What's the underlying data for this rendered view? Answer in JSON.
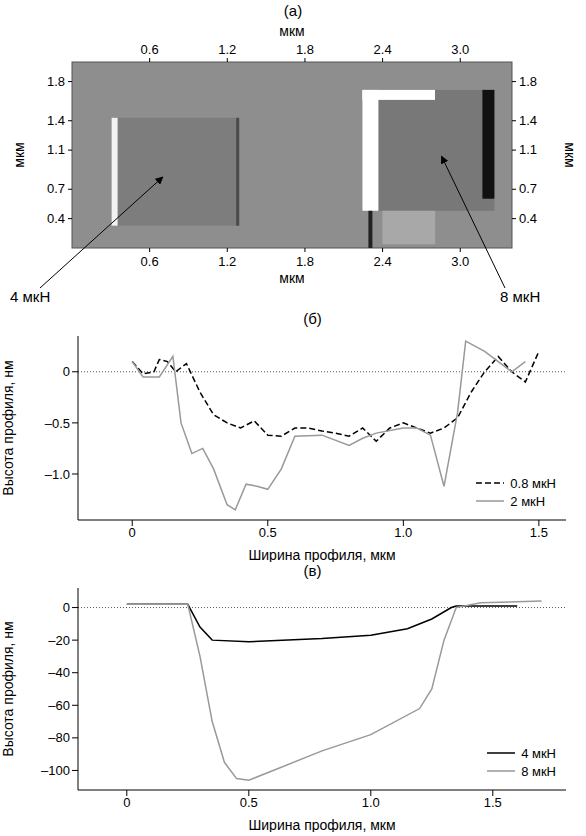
{
  "chart_data": [
    {
      "type": "image",
      "title": "(а)",
      "x_label": "мкм",
      "y_label": "мкм",
      "xlim": [
        0,
        3.4
      ],
      "ylim": [
        0.1,
        2.0
      ],
      "xticks": [
        0.6,
        1.2,
        1.8,
        2.4,
        {
          "value": 3,
          "label": "3.0"
        }
      ],
      "yticks": [
        0.4,
        0.7,
        1.1,
        1.4,
        1.8
      ],
      "annotations": [
        "4 мкН",
        "8 мкН"
      ]
    },
    {
      "type": "line",
      "title": "(б)",
      "x_label": "Ширина профиля, мкм",
      "y_label": "Высота профиля, нм",
      "xlim": [
        -0.2,
        1.6
      ],
      "ylim": [
        -1.45,
        0.35
      ],
      "xticks": [
        0,
        0.5,
        {
          "value": 1,
          "label": "1.0"
        },
        1.5
      ],
      "yticks": [
        {
          "value": -1,
          "label": "–1.0"
        },
        {
          "value": -0.5,
          "label": "–0.5"
        },
        0
      ],
      "reference_y": 0,
      "legend": "lower right",
      "series": [
        {
          "name": "0.8 мкН",
          "color": "#000000",
          "line_style": "dashed",
          "x": [
            0,
            0.04,
            0.08,
            0.1,
            0.13,
            0.16,
            0.2,
            0.25,
            0.3,
            0.35,
            0.4,
            0.45,
            0.5,
            0.55,
            0.6,
            0.65,
            0.7,
            0.75,
            0.8,
            0.85,
            0.9,
            0.95,
            1.0,
            1.05,
            1.1,
            1.15,
            1.2,
            1.25,
            1.3,
            1.35,
            1.4,
            1.45,
            1.5
          ],
          "values": [
            0.1,
            -0.02,
            0.0,
            0.12,
            0.1,
            0.0,
            0.08,
            -0.2,
            -0.42,
            -0.5,
            -0.55,
            -0.48,
            -0.62,
            -0.63,
            -0.55,
            -0.55,
            -0.58,
            -0.6,
            -0.63,
            -0.55,
            -0.68,
            -0.55,
            -0.5,
            -0.55,
            -0.6,
            -0.55,
            -0.45,
            -0.2,
            0.0,
            0.15,
            0.0,
            -0.1,
            0.2
          ]
        },
        {
          "name": "2 мкН",
          "color": "#999999",
          "line_style": "solid",
          "x": [
            0,
            0.04,
            0.1,
            0.15,
            0.18,
            0.22,
            0.26,
            0.3,
            0.35,
            0.38,
            0.42,
            0.46,
            0.5,
            0.55,
            0.6,
            0.7,
            0.8,
            0.85,
            0.9,
            1.0,
            1.05,
            1.1,
            1.15,
            1.2,
            1.23,
            1.3,
            1.35,
            1.4,
            1.45
          ],
          "values": [
            0.1,
            -0.05,
            -0.05,
            0.15,
            -0.5,
            -0.8,
            -0.75,
            -0.95,
            -1.3,
            -1.35,
            -1.1,
            -1.12,
            -1.15,
            -0.95,
            -0.63,
            -0.62,
            -0.72,
            -0.65,
            -0.6,
            -0.55,
            -0.55,
            -0.62,
            -1.12,
            -0.4,
            0.3,
            0.2,
            0.1,
            0.0,
            0.1
          ]
        }
      ]
    },
    {
      "type": "line",
      "title": "(в)",
      "x_label": "Ширина профиля, мкм",
      "y_label": "Высота профиля, нм",
      "xlim": [
        -0.2,
        1.8
      ],
      "ylim": [
        -112,
        12
      ],
      "xticks": [
        0,
        0.5,
        {
          "value": 1,
          "label": "1.0"
        },
        1.5
      ],
      "yticks": [
        {
          "value": -100,
          "label": "–100"
        },
        {
          "value": -80,
          "label": "–80"
        },
        {
          "value": -60,
          "label": "–60"
        },
        {
          "value": -40,
          "label": "–40"
        },
        {
          "value": -20,
          "label": "–20"
        },
        0
      ],
      "reference_y": 0,
      "legend": "lower right",
      "series": [
        {
          "name": "4 мкН",
          "color": "#000000",
          "line_style": "solid",
          "x": [
            0,
            0.25,
            0.3,
            0.35,
            0.5,
            0.8,
            1.0,
            1.15,
            1.25,
            1.33,
            1.35,
            1.6
          ],
          "values": [
            2,
            2,
            -12,
            -20,
            -21,
            -19,
            -17,
            -13,
            -7,
            0,
            1,
            1
          ]
        },
        {
          "name": "8 мкН",
          "color": "#999999",
          "line_style": "solid",
          "x": [
            0,
            0.25,
            0.3,
            0.35,
            0.4,
            0.45,
            0.5,
            0.6,
            0.8,
            1.0,
            1.2,
            1.25,
            1.3,
            1.35,
            1.45,
            1.7
          ],
          "values": [
            2,
            2,
            -30,
            -70,
            -95,
            -105,
            -106,
            -100,
            -88,
            -78,
            -62,
            -50,
            -20,
            0,
            3,
            4
          ]
        }
      ]
    }
  ]
}
